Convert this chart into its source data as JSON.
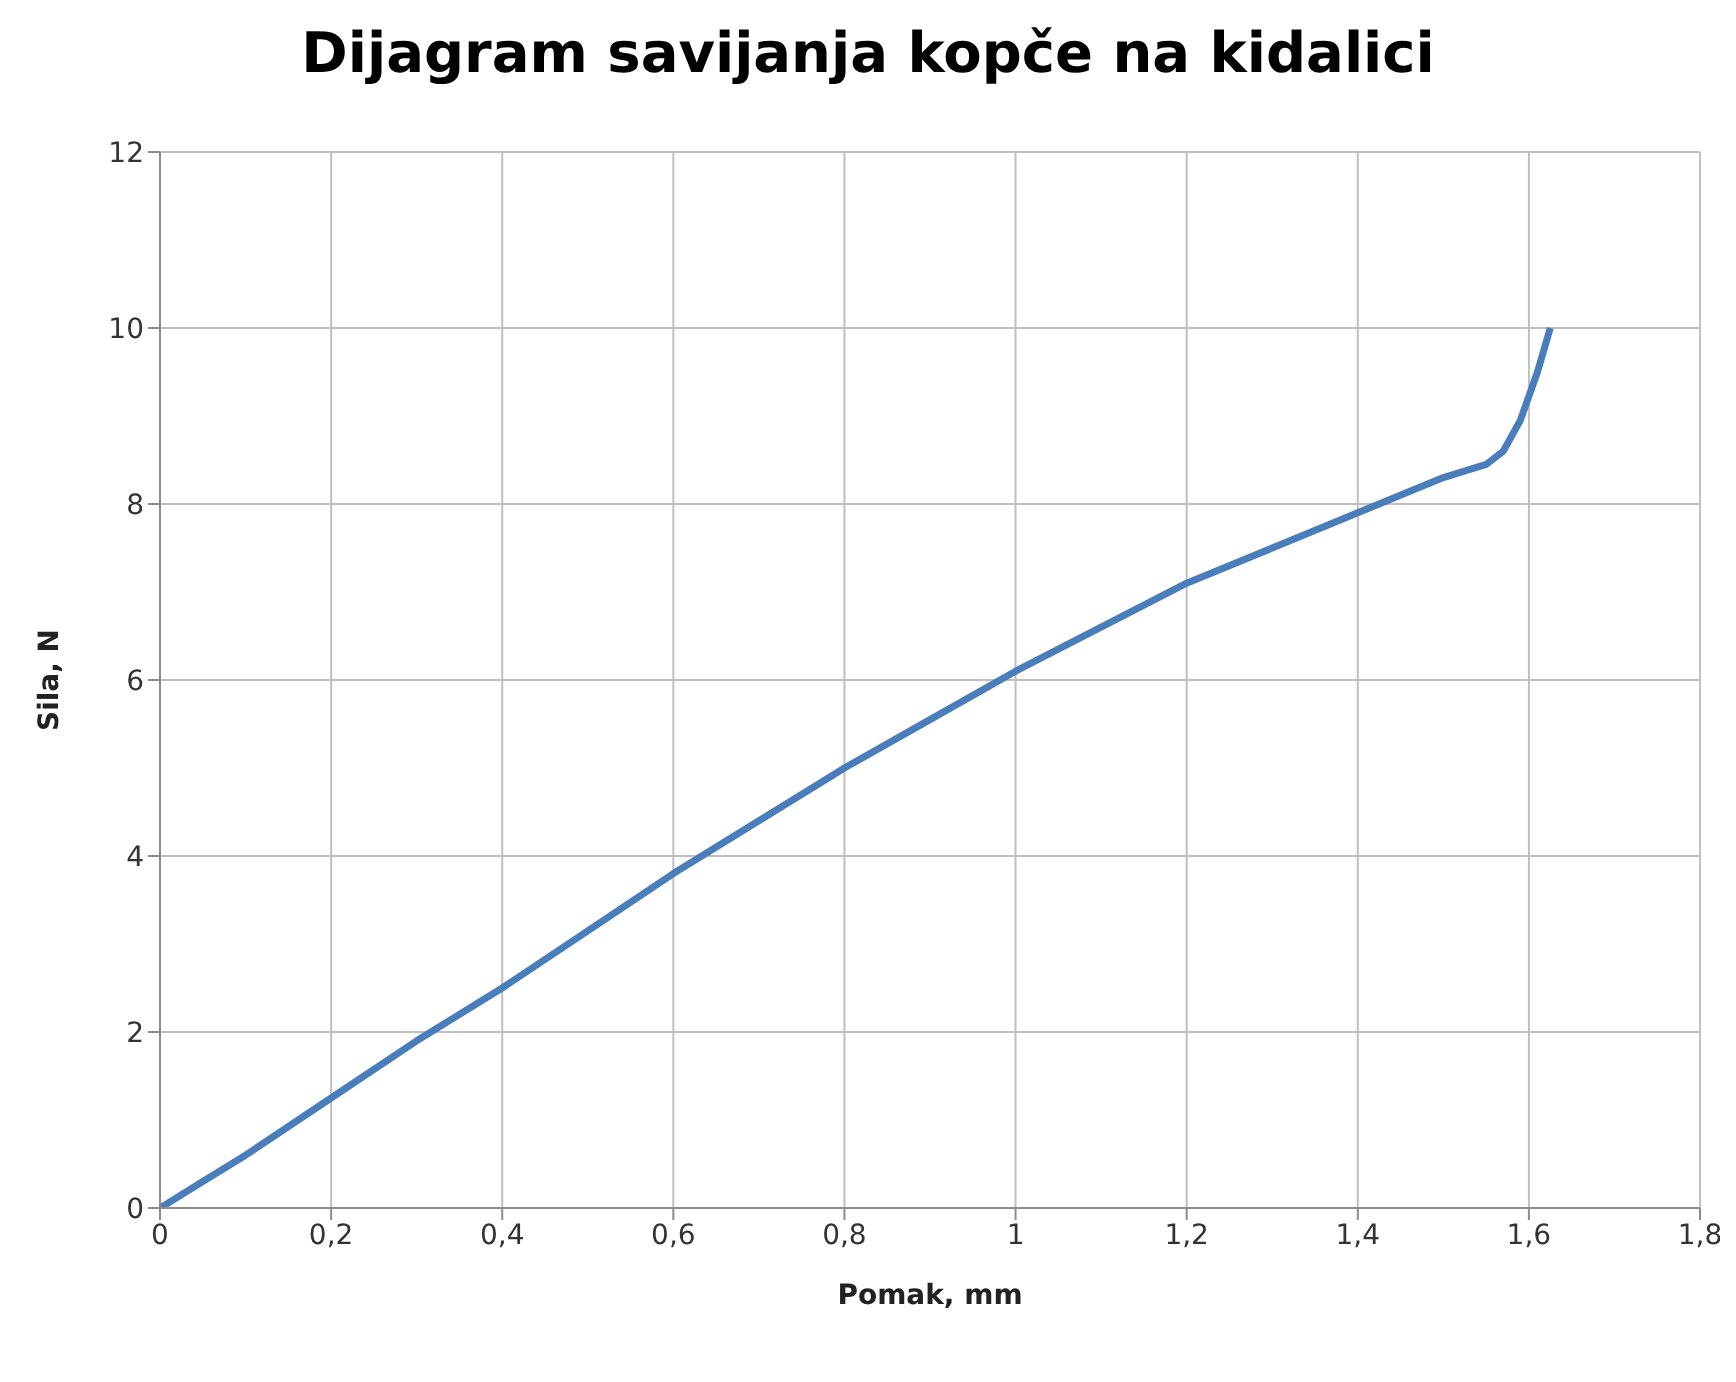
{
  "chart_data": {
    "type": "line",
    "title": "Dijagram savijanja kopče na kidalici",
    "xlabel": "Pomak, mm",
    "ylabel": "Sila, N",
    "x": [
      0,
      0.05,
      0.1,
      0.2,
      0.3,
      0.4,
      0.5,
      0.6,
      0.7,
      0.8,
      0.9,
      1.0,
      1.1,
      1.2,
      1.3,
      1.4,
      1.5,
      1.55,
      1.57,
      1.59,
      1.61,
      1.625
    ],
    "series": [
      {
        "color": "#4a7ebb",
        "values": [
          0,
          0.3,
          0.6,
          1.25,
          1.9,
          2.5,
          3.15,
          3.8,
          4.4,
          5.0,
          5.55,
          6.1,
          6.6,
          7.1,
          7.5,
          7.9,
          8.3,
          8.45,
          8.6,
          8.95,
          9.5,
          10.0
        ]
      }
    ],
    "xlim": [
      0,
      1.8
    ],
    "ylim": [
      0,
      12
    ],
    "xticks": [
      0,
      {
        "value": 0.2,
        "label": "0,2"
      },
      {
        "value": 0.4,
        "label": "0,4"
      },
      {
        "value": 0.6,
        "label": "0,6"
      },
      {
        "value": 0.8,
        "label": "0,8"
      },
      1,
      {
        "value": 1.2,
        "label": "1,2"
      },
      {
        "value": 1.4,
        "label": "1,4"
      },
      {
        "value": 1.6,
        "label": "1,6"
      },
      {
        "value": 1.8,
        "label": "1,8"
      }
    ],
    "yticks": [
      0,
      2,
      4,
      6,
      8,
      10,
      12
    ],
    "grid": true
  }
}
